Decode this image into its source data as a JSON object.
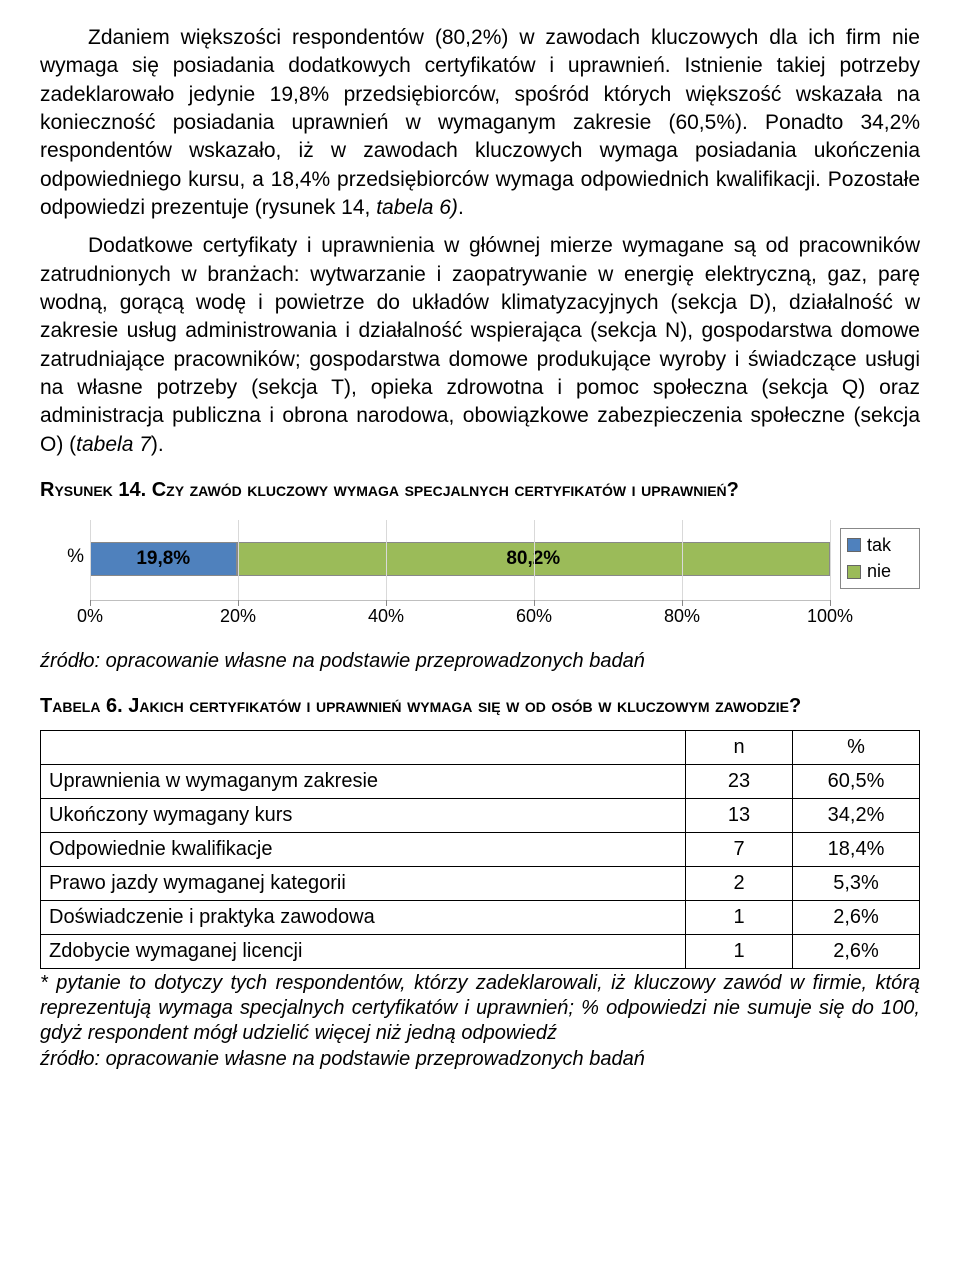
{
  "paragraph1_html": "Zdaniem większości respondentów (80,2%) w zawodach kluczowych dla ich firm nie wymaga się posiadania dodatkowych certyfikatów i uprawnień. Istnienie takiej potrzeby zadeklarowało jedynie 19,8% przedsiębiorców, spośród których większość wskazała na konieczność posiadania uprawnień w wymaganym zakresie (60,5%). Ponadto 34,2% respondentów wskazało, iż w zawodach kluczowych wymaga posiadania ukończenia odpowiedniego kursu, a 18,4% przedsiębiorców wymaga odpowiednich kwalifikacji. Pozostałe odpowiedzi prezentuje (rysunek 14, <span class=\"italic\">tabela 6)</span>.",
  "paragraph2_html": "Dodatkowe certyfikaty i uprawnienia w głównej mierze wymagane są od pracowników zatrudnionych w branżach: wytwarzanie i zaopatrywanie w energię elektryczną, gaz, parę wodną, gorącą wodę i powietrze do układów klimatyzacyjnych (sekcja D), działalność w zakresie usług administrowania i działalność wspierająca (sekcja N), gospodarstwa domowe zatrudniające pracowników; gospodarstwa domowe produkujące wyroby i świadczące usługi na własne potrzeby (sekcja T), opieka zdrowotna i pomoc społeczna (sekcja Q) oraz administracja publiczna i obrona narodowa, obowiązkowe zabezpieczenia społeczne (sekcja O) (<span class=\"italic\">tabela 7</span>).",
  "rysunek14_title": "Rysunek 14. Czy zawód kluczowy wymaga specjalnych certyfikatów i uprawnień?",
  "chart": {
    "type": "stacked-horizontal-bar",
    "y_category": "%",
    "segments": [
      {
        "label": "19,8%",
        "value": 19.8,
        "color": "#4f81bd"
      },
      {
        "label": "80,2%",
        "value": 80.2,
        "color": "#9bbb59"
      }
    ],
    "x_ticks": [
      "0%",
      "20%",
      "40%",
      "60%",
      "80%",
      "100%"
    ],
    "x_tick_positions_pct": [
      0,
      20,
      40,
      60,
      80,
      100
    ],
    "legend": [
      {
        "label": "tak",
        "color": "#4f81bd"
      },
      {
        "label": "nie",
        "color": "#9bbb59"
      }
    ],
    "grid_color": "#d9d9d9",
    "axis_color": "#bfbfbf",
    "label_fontsize": 18
  },
  "source_text": "źródło: opracowanie własne na podstawie przeprowadzonych badań",
  "tabela6_title": "Tabela 6. Jakich certyfikatów i uprawnień wymaga się w od osób w kluczowym zawodzie?",
  "table6": {
    "columns": [
      "",
      "n",
      "%"
    ],
    "rows": [
      [
        "Uprawnienia w wymaganym zakresie",
        "23",
        "60,5%"
      ],
      [
        "Ukończony wymagany kurs",
        "13",
        "34,2%"
      ],
      [
        "Odpowiednie kwalifikacje",
        "7",
        "18,4%"
      ],
      [
        "Prawo jazdy wymaganej kategorii",
        "2",
        "5,3%"
      ],
      [
        "Doświadczenie i praktyka zawodowa",
        "1",
        "2,6%"
      ],
      [
        "Zdobycie wymaganej licencji",
        "1",
        "2,6%"
      ]
    ]
  },
  "footnote_text": "* pytanie to dotyczy tych respondentów, którzy zadeklarowali, iż kluczowy zawód w firmie, którą reprezentują wymaga specjalnych certyfikatów i uprawnień; % odpowiedzi nie sumuje się do 100, gdyż respondent mógł udzielić więcej niż jedną odpowiedź",
  "source_text2": "źródło: opracowanie własne na podstawie przeprowadzonych badań"
}
